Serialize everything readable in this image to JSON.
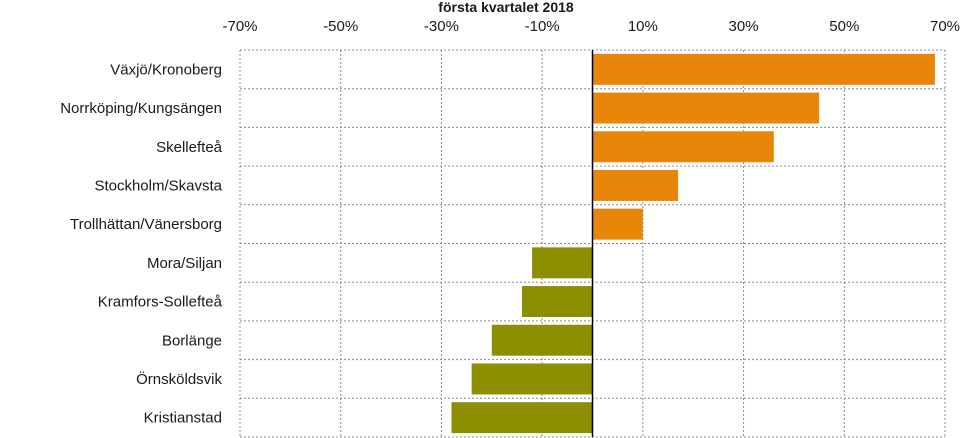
{
  "chart_data": {
    "type": "bar",
    "orientation": "horizontal",
    "title": "första kvartalet  2018",
    "categories": [
      "Växjö/Kronoberg",
      "Norrköping/Kungsängen",
      "Skellefteå",
      "Stockholm/Skavsta",
      "Trollhättan/Vänersborg",
      "Mora/Siljan",
      "Kramfors-Sollefteå",
      "Borlänge",
      "Örnsköldsvik",
      "Kristianstad"
    ],
    "values": [
      68,
      45,
      36,
      17,
      10,
      -12,
      -14,
      -20,
      -24,
      -28
    ],
    "xlim": [
      -70,
      70
    ],
    "xticks": [
      -70,
      -50,
      -30,
      -10,
      10,
      30,
      50,
      70
    ],
    "xtick_labels": [
      "-70%",
      "-50%",
      "-30%",
      "-10%",
      "10%",
      "30%",
      "50%",
      "70%"
    ],
    "xaxis_position": "top",
    "grid": true,
    "legend": "none",
    "colors": {
      "positive": "#E8860A",
      "negative": "#8C8F00",
      "zero_line": "#000000",
      "grid": "#8c8c8c"
    }
  }
}
